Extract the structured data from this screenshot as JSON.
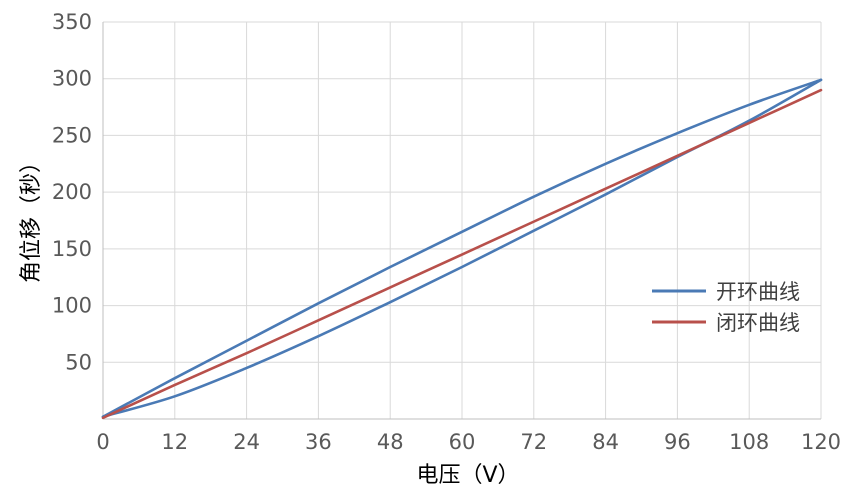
{
  "chart_data": {
    "type": "line",
    "title": "",
    "xlabel": "电压（V）",
    "ylabel": "角位移（秒）",
    "xlim": [
      0,
      120
    ],
    "ylim": [
      0,
      350
    ],
    "x_ticks": [
      0,
      12,
      24,
      36,
      48,
      60,
      72,
      84,
      96,
      108,
      120
    ],
    "y_ticks": [
      50,
      100,
      150,
      200,
      250,
      300,
      350
    ],
    "grid": true,
    "legend_position": "right",
    "series": [
      {
        "name": "开环曲线",
        "color": "#4a7ab5",
        "segments": [
          {
            "x": [
              0,
              12,
              24,
              36,
              48,
              60,
              72,
              84,
              96,
              108,
              120
            ],
            "y": [
              2,
              36,
              69,
              102,
              134,
              165,
              196,
              225,
              252,
              277,
              299
            ]
          },
          {
            "x": [
              120,
              108,
              96,
              84,
              72,
              60,
              48,
              36,
              24,
              12,
              0
            ],
            "y": [
              299,
              263,
              231,
              198,
              166,
              134,
              103,
              73,
              45,
              20,
              2
            ]
          }
        ]
      },
      {
        "name": "闭环曲线",
        "color": "#b8504b",
        "segments": [
          {
            "x": [
              0,
              12,
              24,
              36,
              48,
              60,
              72,
              84,
              96,
              108,
              120
            ],
            "y": [
              1,
              30,
              58,
              87,
              116,
              145,
              174,
              203,
              232,
              261,
              290
            ]
          }
        ]
      }
    ]
  }
}
